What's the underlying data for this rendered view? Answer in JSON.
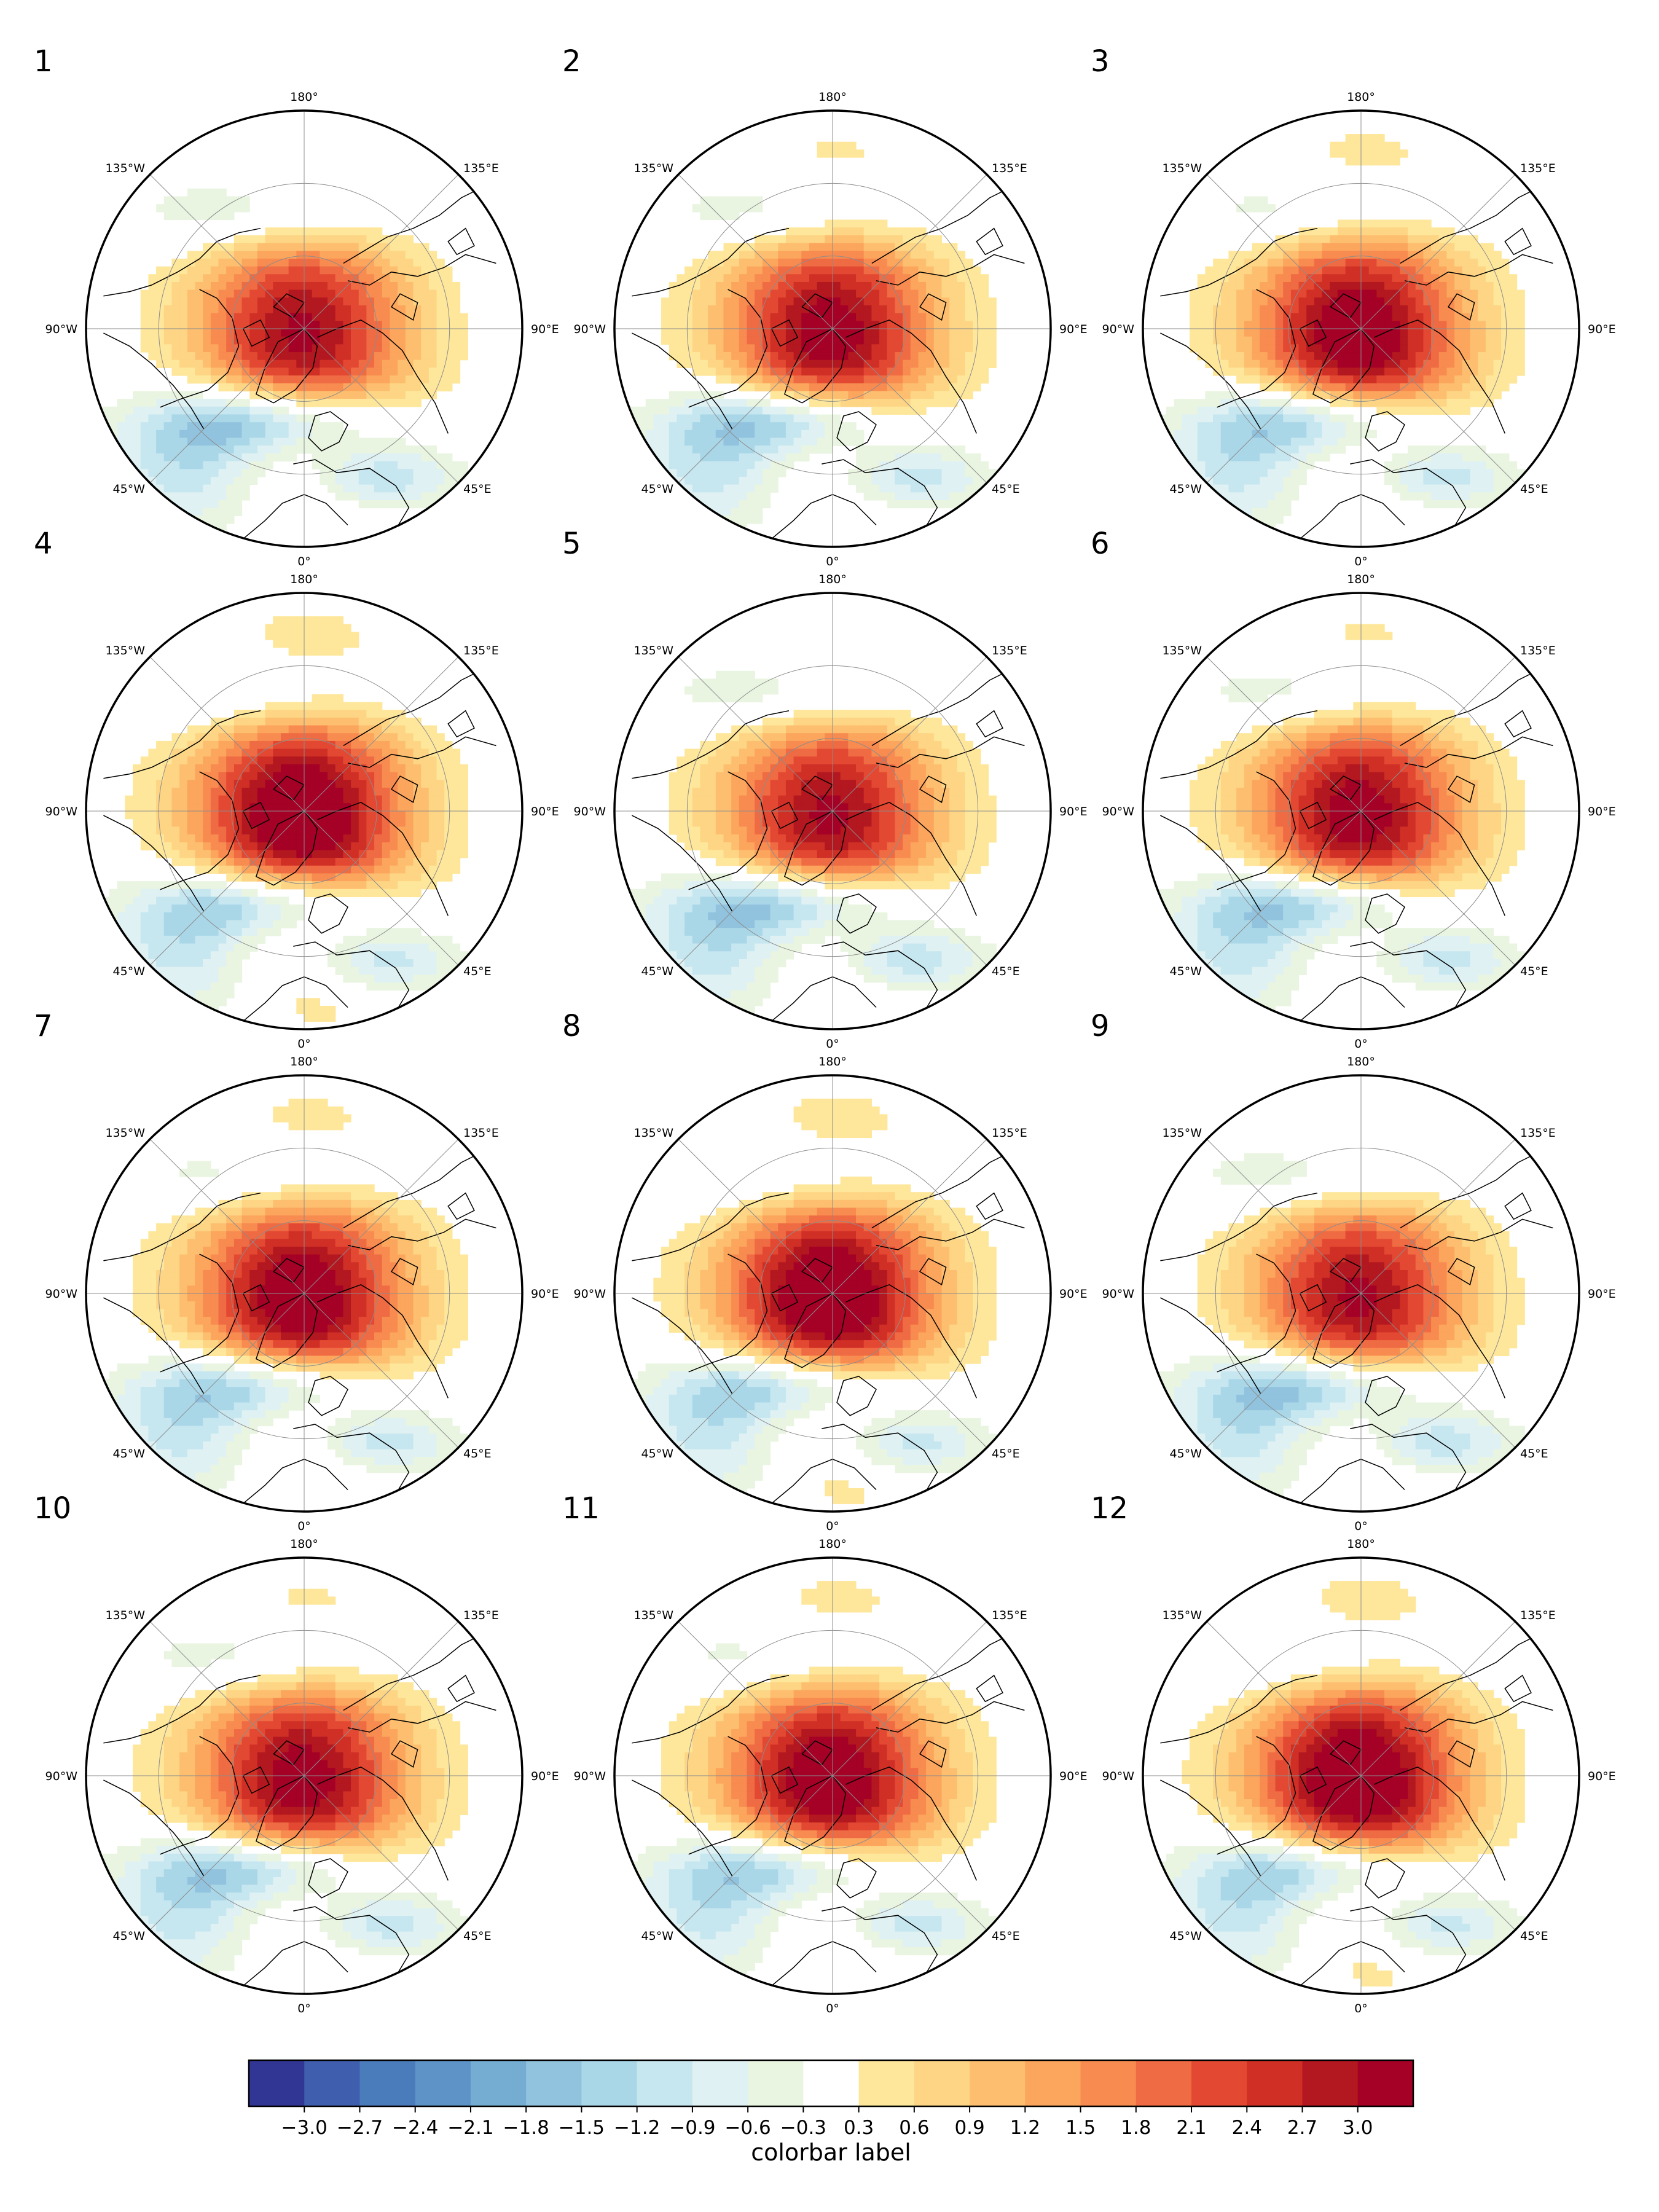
{
  "figure": {
    "panels": [
      {
        "label": "1"
      },
      {
        "label": "2"
      },
      {
        "label": "3"
      },
      {
        "label": "4"
      },
      {
        "label": "5"
      },
      {
        "label": "6"
      },
      {
        "label": "7"
      },
      {
        "label": "8"
      },
      {
        "label": "9"
      },
      {
        "label": "10"
      },
      {
        "label": "11"
      },
      {
        "label": "12"
      }
    ],
    "longitude_labels": {
      "top": "180°",
      "top_right": "135°E",
      "right": "90°E",
      "bottom_right": "45°E",
      "bottom": "0°",
      "bottom_left": "45°W",
      "left": "90°W",
      "top_left": "135°W"
    },
    "map_projection": "north polar stereographic",
    "field_pattern": "positive anomaly centred over the Arctic/Greenland, negative belt over the North Atlantic, Europe and North Pacific",
    "colorbar": {
      "label": "colorbar label",
      "ticks": [
        "−3.0",
        "−2.7",
        "−2.4",
        "−2.1",
        "−1.8",
        "−1.5",
        "−1.2",
        "−0.9",
        "−0.6",
        "−0.3",
        "0.3",
        "0.6",
        "0.9",
        "1.2",
        "1.5",
        "1.8",
        "2.1",
        "2.4",
        "2.7",
        "3.0"
      ],
      "levels": [
        -3.3,
        -3.0,
        -2.7,
        -2.4,
        -2.1,
        -1.8,
        -1.5,
        -1.2,
        -0.9,
        -0.6,
        -0.3,
        0.3,
        0.6,
        0.9,
        1.2,
        1.5,
        1.8,
        2.1,
        2.4,
        2.7,
        3.0,
        3.3
      ],
      "colors": [
        "#313695",
        "#3f5fae",
        "#4a7bba",
        "#5d93c6",
        "#74add1",
        "#91c3de",
        "#aad7e8",
        "#c6e6f0",
        "#dff1f3",
        "#e9f5e1",
        "#ffffff",
        "#fee79b",
        "#fdd585",
        "#fdbf6f",
        "#fca55d",
        "#f88b50",
        "#ef6b43",
        "#e34932",
        "#d02f26",
        "#b3171f",
        "#a50026"
      ]
    }
  }
}
